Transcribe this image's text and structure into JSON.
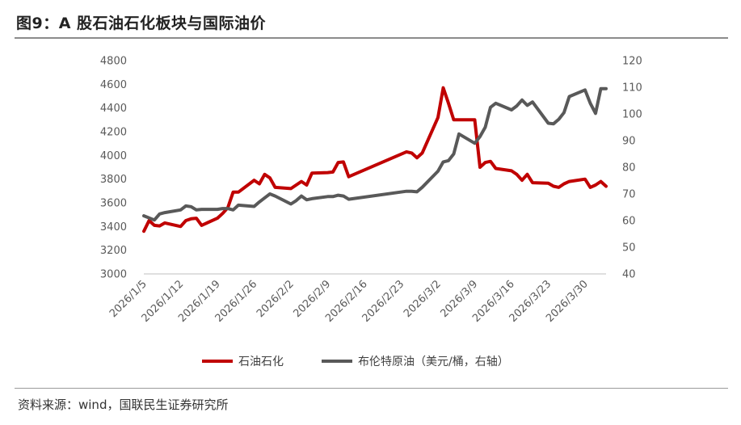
{
  "figure": {
    "title": "图9：A 股石油石化板块与国际油价",
    "source": "资料来源：wind，国联民生证券研究所"
  },
  "chart_data": {
    "type": "line",
    "title": "",
    "xlabel": "",
    "ylabel_left": "",
    "ylabel_right": "",
    "x_ticks": [
      "2026/1/5",
      "2026/1/12",
      "2026/1/19",
      "2026/1/26",
      "2026/2/2",
      "2026/2/9",
      "2026/2/16",
      "2026/2/23",
      "2026/3/2",
      "2026/3/9",
      "2026/3/16",
      "2026/3/23",
      "2026/3/30"
    ],
    "ylim_left": [
      3000,
      4800
    ],
    "yticks_left": [
      3000,
      3200,
      3400,
      3600,
      3800,
      4000,
      4200,
      4400,
      4600,
      4800
    ],
    "ylim_right": [
      40,
      120
    ],
    "yticks_right": [
      40,
      50,
      60,
      70,
      80,
      90,
      100,
      110,
      120
    ],
    "legend_position": "bottom",
    "grid": false,
    "series": [
      {
        "name": "石油石化",
        "axis": "left",
        "color": "#c00000",
        "points": [
          [
            "2026/1/5",
            3360
          ],
          [
            "2026/1/6",
            3450
          ],
          [
            "2026/1/7",
            3410
          ],
          [
            "2026/1/8",
            3405
          ],
          [
            "2026/1/9",
            3430
          ],
          [
            "2026/1/12",
            3400
          ],
          [
            "2026/1/13",
            3450
          ],
          [
            "2026/1/14",
            3465
          ],
          [
            "2026/1/15",
            3470
          ],
          [
            "2026/1/16",
            3410
          ],
          [
            "2026/1/19",
            3470
          ],
          [
            "2026/1/20",
            3510
          ],
          [
            "2026/1/21",
            3560
          ],
          [
            "2026/1/22",
            3690
          ],
          [
            "2026/1/23",
            3690
          ],
          [
            "2026/1/26",
            3790
          ],
          [
            "2026/1/27",
            3760
          ],
          [
            "2026/1/28",
            3840
          ],
          [
            "2026/1/29",
            3810
          ],
          [
            "2026/1/30",
            3730
          ],
          [
            "2026/2/2",
            3720
          ],
          [
            "2026/2/3",
            3750
          ],
          [
            "2026/2/4",
            3780
          ],
          [
            "2026/2/5",
            3750
          ],
          [
            "2026/2/6",
            3850
          ],
          [
            "2026/2/9",
            3855
          ],
          [
            "2026/2/10",
            3860
          ],
          [
            "2026/2/11",
            3940
          ],
          [
            "2026/2/12",
            3945
          ],
          [
            "2026/2/13",
            3820
          ],
          [
            "2026/2/24",
            4030
          ],
          [
            "2026/2/25",
            4020
          ],
          [
            "2026/2/26",
            3980
          ],
          [
            "2026/2/27",
            4020
          ],
          [
            "2026/3/2",
            4320
          ],
          [
            "2026/3/3",
            4570
          ],
          [
            "2026/3/4",
            4440
          ],
          [
            "2026/3/5",
            4300
          ],
          [
            "2026/3/6",
            4300
          ],
          [
            "2026/3/9",
            4300
          ],
          [
            "2026/3/10",
            3900
          ],
          [
            "2026/3/11",
            3940
          ],
          [
            "2026/3/12",
            3950
          ],
          [
            "2026/3/13",
            3890
          ],
          [
            "2026/3/16",
            3870
          ],
          [
            "2026/3/17",
            3840
          ],
          [
            "2026/3/18",
            3790
          ],
          [
            "2026/3/19",
            3840
          ],
          [
            "2026/3/20",
            3770
          ],
          [
            "2026/3/23",
            3765
          ],
          [
            "2026/3/24",
            3740
          ],
          [
            "2026/3/25",
            3730
          ],
          [
            "2026/3/26",
            3760
          ],
          [
            "2026/3/27",
            3780
          ],
          [
            "2026/3/30",
            3800
          ],
          [
            "2026/3/31",
            3730
          ],
          [
            "2026/4/1",
            3750
          ],
          [
            "2026/4/2",
            3780
          ],
          [
            "2026/4/3",
            3740
          ]
        ]
      },
      {
        "name": "布伦特原油（美元/桶，右轴）",
        "axis": "right",
        "color": "#595959",
        "points": [
          [
            "2026/1/5",
            61.8
          ],
          [
            "2026/1/6",
            61.0
          ],
          [
            "2026/1/7",
            60.2
          ],
          [
            "2026/1/8",
            62.5
          ],
          [
            "2026/1/9",
            63.0
          ],
          [
            "2026/1/12",
            64.0
          ],
          [
            "2026/1/13",
            65.5
          ],
          [
            "2026/1/14",
            65.2
          ],
          [
            "2026/1/15",
            64.0
          ],
          [
            "2026/1/16",
            64.2
          ],
          [
            "2026/1/19",
            64.2
          ],
          [
            "2026/1/20",
            64.5
          ],
          [
            "2026/1/21",
            64.5
          ],
          [
            "2026/1/22",
            64.0
          ],
          [
            "2026/1/23",
            65.8
          ],
          [
            "2026/1/26",
            65.3
          ],
          [
            "2026/1/27",
            67.0
          ],
          [
            "2026/1/28",
            68.5
          ],
          [
            "2026/1/29",
            70.0
          ],
          [
            "2026/1/30",
            69.2
          ],
          [
            "2026/2/2",
            66.2
          ],
          [
            "2026/2/3",
            67.5
          ],
          [
            "2026/2/4",
            69.2
          ],
          [
            "2026/2/5",
            67.8
          ],
          [
            "2026/2/6",
            68.2
          ],
          [
            "2026/2/9",
            69.0
          ],
          [
            "2026/2/10",
            69.0
          ],
          [
            "2026/2/11",
            69.5
          ],
          [
            "2026/2/12",
            69.2
          ],
          [
            "2026/2/13",
            68.0
          ],
          [
            "2026/2/24",
            71.0
          ],
          [
            "2026/2/25",
            71.0
          ],
          [
            "2026/2/26",
            70.8
          ],
          [
            "2026/2/27",
            72.5
          ],
          [
            "2026/3/2",
            78.5
          ],
          [
            "2026/3/3",
            82.0
          ],
          [
            "2026/3/4",
            82.5
          ],
          [
            "2026/3/5",
            85.0
          ],
          [
            "2026/3/6",
            92.5
          ],
          [
            "2026/3/9",
            89.0
          ],
          [
            "2026/3/10",
            91.5
          ],
          [
            "2026/3/11",
            95.0
          ],
          [
            "2026/3/12",
            102.5
          ],
          [
            "2026/3/13",
            104.0
          ],
          [
            "2026/3/16",
            101.5
          ],
          [
            "2026/3/17",
            103.0
          ],
          [
            "2026/3/18",
            105.2
          ],
          [
            "2026/3/19",
            103.2
          ],
          [
            "2026/3/20",
            104.5
          ],
          [
            "2026/3/23",
            96.5
          ],
          [
            "2026/3/24",
            96.3
          ],
          [
            "2026/3/25",
            98.0
          ],
          [
            "2026/3/26",
            100.5
          ],
          [
            "2026/3/27",
            106.5
          ],
          [
            "2026/3/30",
            109.0
          ],
          [
            "2026/3/31",
            104.0
          ],
          [
            "2026/4/1",
            100.2
          ],
          [
            "2026/4/2",
            109.5
          ],
          [
            "2026/4/3",
            109.5
          ]
        ]
      }
    ]
  }
}
